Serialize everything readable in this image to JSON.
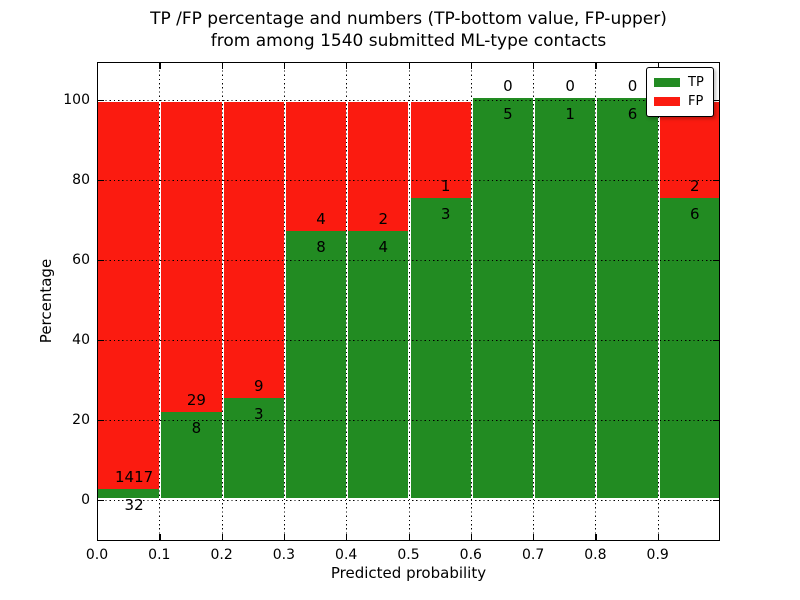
{
  "title": {
    "line1": "TP /FP percentage and numbers (TP-bottom value, FP-upper)",
    "line2": "from among 1540 submitted ML-type contacts"
  },
  "axes": {
    "xlabel": "Predicted probability",
    "ylabel": "Percentage",
    "x_tick_labels": [
      "0.0",
      "0.1",
      "0.2",
      "0.3",
      "0.4",
      "0.5",
      "0.6",
      "0.7",
      "0.8",
      "0.9"
    ],
    "y_tick_labels": [
      "0",
      "20",
      "40",
      "60",
      "80",
      "100"
    ],
    "y_tick_values": [
      0,
      20,
      40,
      60,
      80,
      100
    ]
  },
  "legend": {
    "items": [
      {
        "label": "TP",
        "color": "#228b22"
      },
      {
        "label": "FP",
        "color": "#fb1b10"
      }
    ]
  },
  "chart_data": {
    "type": "bar",
    "subtype": "stacked-percentage-histogram",
    "title": "TP /FP percentage and numbers (TP-bottom value, FP-upper) from among 1540 submitted ML-type contacts",
    "xlabel": "Predicted probability",
    "ylabel": "Percentage",
    "xlim": [
      0.0,
      1.0
    ],
    "ylim": [
      -10.3,
      109.5
    ],
    "grid": true,
    "legend_position": "upper right",
    "total_contacts": 1540,
    "x_bin_edges": [
      0.0,
      0.1,
      0.2,
      0.3,
      0.4,
      0.5,
      0.6,
      0.7,
      0.8,
      0.9,
      1.0
    ],
    "series": [
      {
        "name": "TP",
        "color": "#228b22",
        "counts": [
          32,
          8,
          3,
          8,
          4,
          3,
          5,
          1,
          6,
          6
        ]
      },
      {
        "name": "FP",
        "color": "#fb1b10",
        "counts": [
          1417,
          29,
          9,
          4,
          2,
          1,
          0,
          0,
          0,
          2
        ]
      }
    ],
    "tp_percent_per_bin": [
      2.2,
      21.6,
      25.0,
      66.7,
      66.7,
      75.0,
      100.0,
      100.0,
      100.0,
      75.0
    ]
  }
}
